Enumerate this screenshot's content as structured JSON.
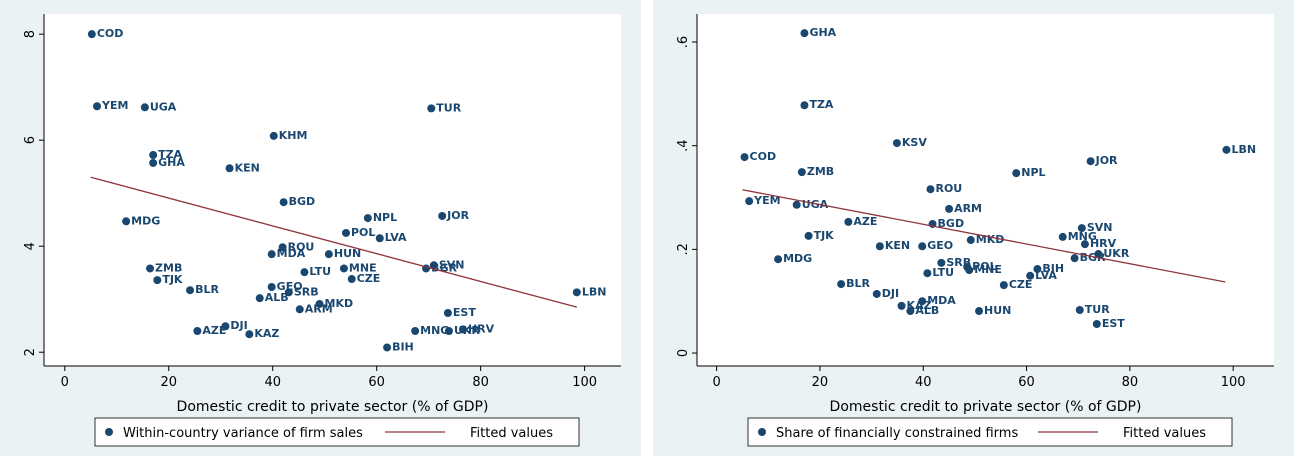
{
  "chart_data": [
    {
      "type": "scatter",
      "xlabel": "Domestic credit to private sector (% of GDP)",
      "xlim": [
        -4,
        107
      ],
      "ylim": [
        1.74,
        8.38
      ],
      "xticks": [
        0,
        20,
        40,
        60,
        80,
        100
      ],
      "yticks": [
        2,
        4,
        6,
        8
      ],
      "series": [
        {
          "name": "Within-country variance of firm sales",
          "color": "#1a476f",
          "type": "scatter",
          "labels": [
            "COD",
            "YEM",
            "UGA",
            "TUR",
            "KHM",
            "TZA",
            "GHA",
            "KEN",
            "BGD",
            "MDG",
            "NPL",
            "JOR",
            "POL",
            "LVA",
            "ROU",
            "MDA",
            "HUN",
            "ZMB",
            "MNE",
            "LTU",
            "SVN",
            "BGR",
            "TJK",
            "CZE",
            "BLR",
            "GEO",
            "SRB",
            "ALB",
            "LBN",
            "ARM",
            "MKD",
            "EST",
            "AZE",
            "DJI",
            "KAZ",
            "MNG",
            "UKR",
            "HRV",
            "BIH"
          ],
          "x": [
            5.2,
            6.2,
            15.4,
            70.5,
            40.2,
            17.0,
            17.0,
            31.7,
            42.1,
            11.8,
            58.3,
            72.6,
            54.1,
            60.6,
            41.9,
            39.8,
            50.8,
            16.4,
            53.7,
            46.1,
            71.0,
            69.5,
            17.8,
            55.2,
            24.1,
            39.8,
            43.1,
            37.5,
            98.5,
            45.2,
            49.0,
            73.7,
            25.5,
            30.9,
            35.5,
            67.4,
            73.9,
            76.6,
            62.0
          ],
          "values": [
            8.0,
            6.64,
            6.62,
            6.6,
            6.08,
            5.72,
            5.57,
            5.47,
            4.83,
            4.47,
            4.53,
            4.57,
            4.25,
            4.15,
            3.98,
            3.85,
            3.85,
            3.58,
            3.58,
            3.51,
            3.64,
            3.58,
            3.36,
            3.38,
            3.17,
            3.23,
            3.13,
            3.02,
            3.13,
            2.81,
            2.91,
            2.74,
            2.4,
            2.49,
            2.34,
            2.4,
            2.4,
            2.43,
            2.09
          ]
        },
        {
          "name": "Fitted values",
          "color": "#90353b",
          "type": "line",
          "x": [
            5,
            98.5
          ],
          "values": [
            5.3,
            2.85
          ]
        }
      ]
    },
    {
      "type": "scatter",
      "xlabel": "Domestic credit to private sector (% of GDP)",
      "xlim": [
        -3.8,
        107.9
      ],
      "ylim": [
        -0.025,
        0.654
      ],
      "xticks": [
        0,
        20,
        40,
        60,
        80,
        100
      ],
      "yticks": [
        0,
        {
          "value": 0.2,
          "label": ".2"
        },
        {
          "value": 0.4,
          "label": ".4"
        },
        {
          "value": 0.6,
          "label": ".6"
        }
      ],
      "series": [
        {
          "name": "Share of financially constrained firms",
          "color": "#1a476f",
          "type": "scatter",
          "labels": [
            "GHA",
            "TZA",
            "KSV",
            "COD",
            "LBN",
            "JOR",
            "ZMB",
            "NPL",
            "ROU",
            "YEM",
            "UGA",
            "ARM",
            "AZE",
            "SVN",
            "BGD",
            "TJK",
            "MNG",
            "MKD",
            "HRV",
            "KEN",
            "GEO",
            "UKR",
            "BGR",
            "MDG",
            "SRB",
            "BIH",
            "POL",
            "MNE",
            "LVA",
            "LTU",
            "BLR",
            "CZE",
            "DJI",
            "MDA",
            "KAZ",
            "ALB",
            "HUN",
            "TUR",
            "EST"
          ],
          "x": [
            17.0,
            17.0,
            34.9,
            5.4,
            98.7,
            72.4,
            16.5,
            58.0,
            41.4,
            6.3,
            15.5,
            45.0,
            25.5,
            70.7,
            41.8,
            17.8,
            67.0,
            49.2,
            71.3,
            31.6,
            39.8,
            73.9,
            69.3,
            11.9,
            43.5,
            62.1,
            48.5,
            48.9,
            60.7,
            40.8,
            24.1,
            55.6,
            31.0,
            39.8,
            35.8,
            37.5,
            50.8,
            70.3,
            73.6
          ],
          "values": [
            0.617,
            0.478,
            0.405,
            0.378,
            0.392,
            0.37,
            0.349,
            0.347,
            0.316,
            0.293,
            0.286,
            0.278,
            0.253,
            0.241,
            0.249,
            0.226,
            0.224,
            0.218,
            0.21,
            0.206,
            0.206,
            0.191,
            0.183,
            0.181,
            0.174,
            0.162,
            0.166,
            0.16,
            0.149,
            0.154,
            0.133,
            0.131,
            0.114,
            0.1,
            0.091,
            0.081,
            0.081,
            0.083,
            0.056
          ]
        },
        {
          "name": "Fitted values",
          "color": "#90353b",
          "type": "line",
          "x": [
            5,
            98.5
          ],
          "values": [
            0.315,
            0.137
          ]
        }
      ]
    }
  ]
}
